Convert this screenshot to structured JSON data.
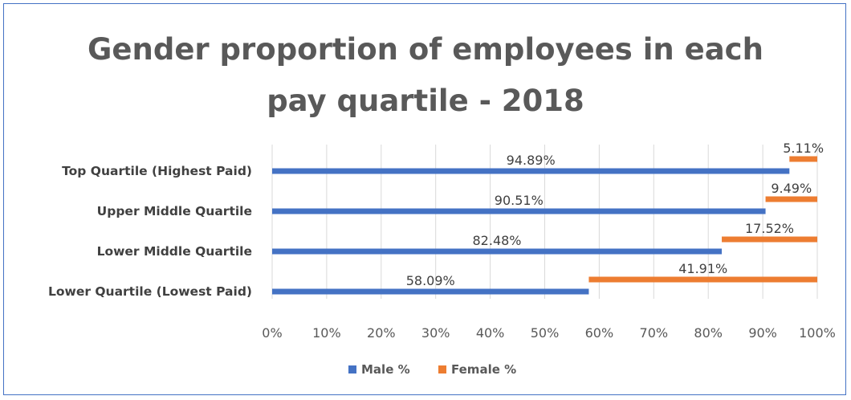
{
  "chart_data": {
    "type": "bar",
    "orientation": "horizontal",
    "stacked": true,
    "title_lines": [
      "Gender proportion of employees in each",
      "pay quartile - 2018"
    ],
    "categories": [
      "Top Quartile (Highest Paid)",
      "Upper Middle Quartile",
      "Lower Middle Quartile",
      "Lower Quartile (Lowest Paid)"
    ],
    "series": [
      {
        "name": "Male %",
        "color": "#4472C4",
        "values": [
          94.89,
          90.51,
          82.48,
          58.09
        ],
        "labels": [
          "94.89%",
          "90.51%",
          "82.48%",
          "58.09%"
        ]
      },
      {
        "name": "Female %",
        "color": "#ED7D31",
        "values": [
          5.11,
          9.49,
          17.52,
          41.91
        ],
        "labels": [
          "5.11%",
          "9.49%",
          "17.52%",
          "41.91%"
        ]
      }
    ],
    "xlim": [
      0,
      100
    ],
    "xticks": [
      "0%",
      "10%",
      "20%",
      "30%",
      "40%",
      "50%",
      "60%",
      "70%",
      "80%",
      "90%",
      "100%"
    ],
    "grid": true,
    "legend": "bottom"
  }
}
